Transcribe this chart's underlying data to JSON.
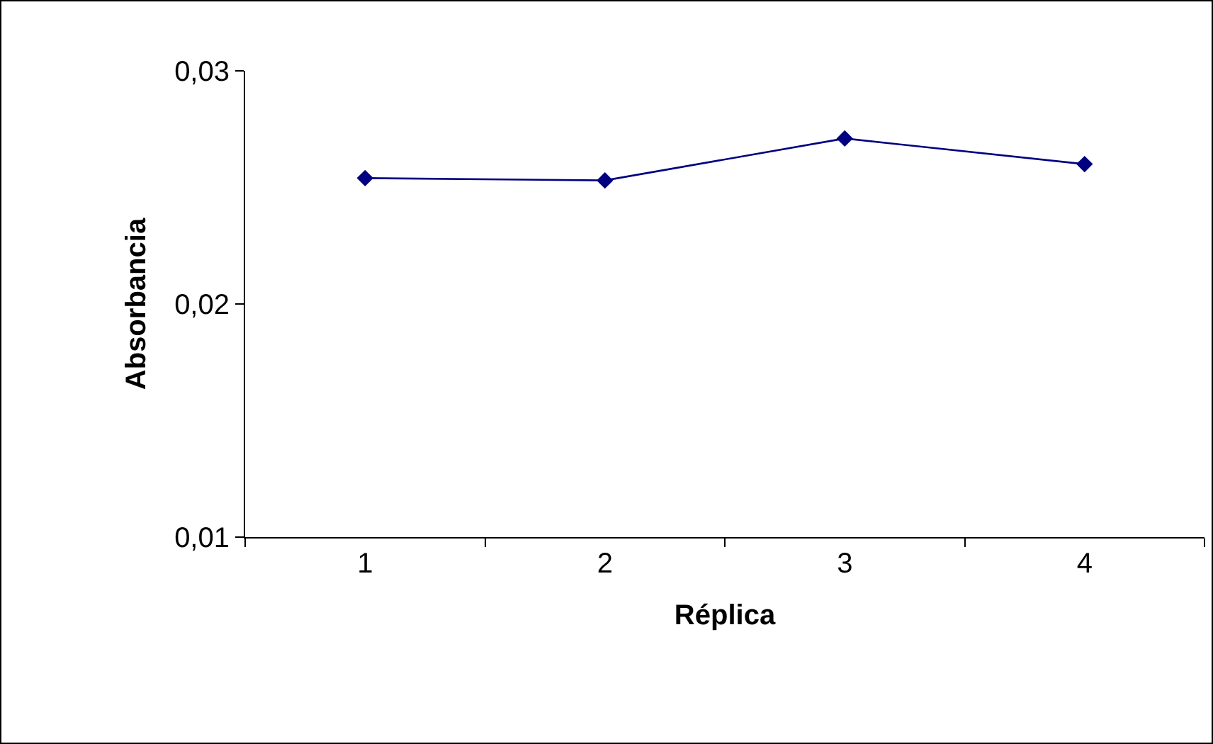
{
  "chart_data": {
    "type": "line",
    "xlabel": "Réplica",
    "ylabel": "Absorbancia",
    "categories": [
      "1",
      "2",
      "3",
      "4"
    ],
    "series": [
      {
        "color": "#000080",
        "values": [
          0.0254,
          0.0253,
          0.0271,
          0.026
        ]
      }
    ],
    "ylim": [
      0.01,
      0.03
    ],
    "yticks": [
      {
        "value": 0.01,
        "label": "0,01"
      },
      {
        "value": 0.02,
        "label": "0,02"
      },
      {
        "value": 0.03,
        "label": "0,03"
      }
    ],
    "grid": false,
    "legend": false,
    "marker": "diamond",
    "line_style": "solid"
  }
}
